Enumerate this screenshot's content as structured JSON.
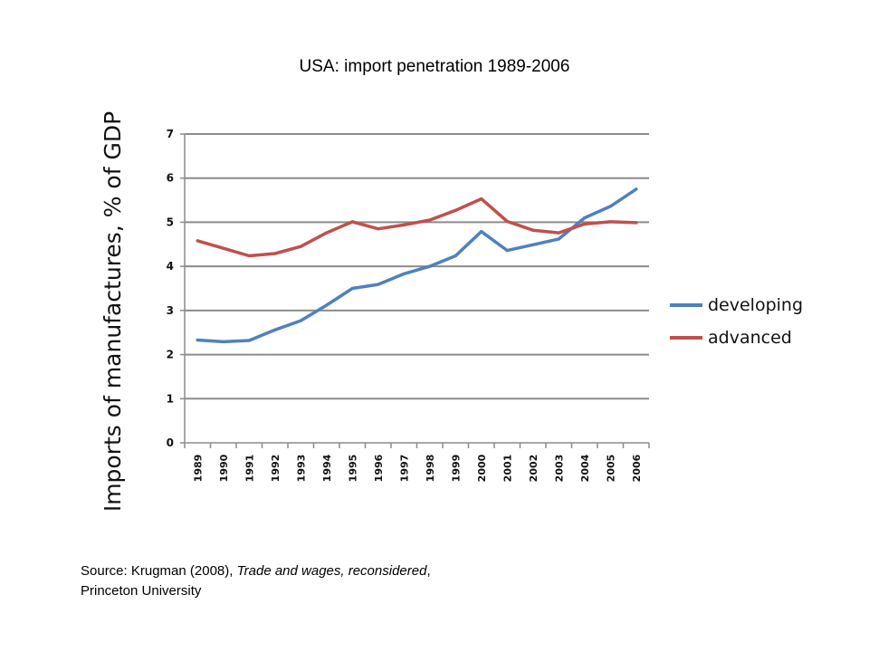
{
  "slide": {
    "title": "USA: import penetration 1989-2006"
  },
  "source": {
    "prefix": "Source: Krugman (2008), ",
    "work": "Trade and wages, reconsidered",
    "suffix": ",",
    "line2": "Princeton University"
  },
  "chart_data": {
    "type": "line",
    "title": "",
    "xlabel": "",
    "ylabel": "Imports of manufactures, % of GDP",
    "x": [
      "1989",
      "1990",
      "1991",
      "1992",
      "1993",
      "1994",
      "1995",
      "1996",
      "1997",
      "1998",
      "1999",
      "2000",
      "2001",
      "2002",
      "2003",
      "2004",
      "2005",
      "2006"
    ],
    "ylim": [
      0,
      7
    ],
    "yticks": [
      0,
      1,
      2,
      3,
      4,
      5,
      6,
      7
    ],
    "grid": true,
    "legend_position": "right",
    "series": [
      {
        "name": "developing",
        "color": "#4F81BD",
        "values": [
          2.33,
          2.29,
          2.32,
          2.56,
          2.77,
          3.12,
          3.5,
          3.59,
          3.83,
          4.0,
          4.24,
          4.79,
          4.36,
          4.49,
          4.62,
          5.1,
          5.36,
          5.75
        ]
      },
      {
        "name": "advanced",
        "color": "#C0504D",
        "values": [
          4.58,
          4.41,
          4.24,
          4.29,
          4.45,
          4.76,
          5.01,
          4.85,
          4.94,
          5.05,
          5.27,
          5.53,
          5.02,
          4.82,
          4.76,
          4.96,
          5.01,
          4.99
        ]
      }
    ]
  }
}
